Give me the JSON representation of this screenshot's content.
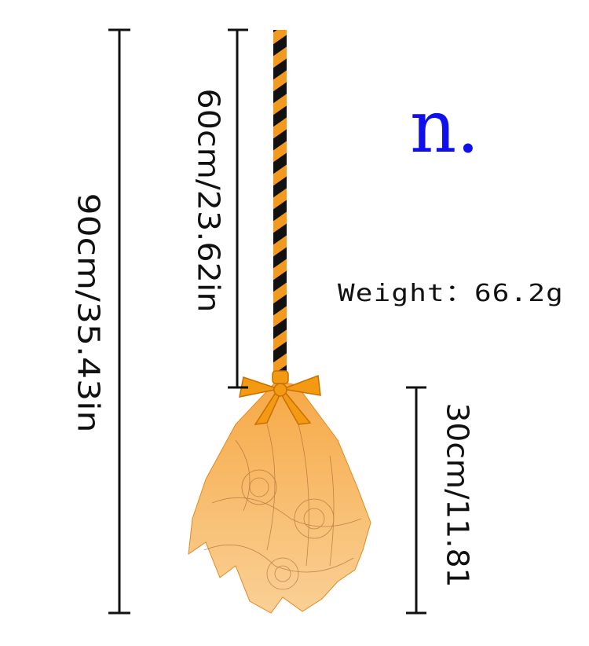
{
  "dimensions": [
    {
      "label": "90cm/35.43in"
    },
    {
      "label": "60cm/23.62in"
    },
    {
      "label": "30cm/11.81"
    }
  ],
  "brand": "n.",
  "weight": "Weight：66.2g"
}
